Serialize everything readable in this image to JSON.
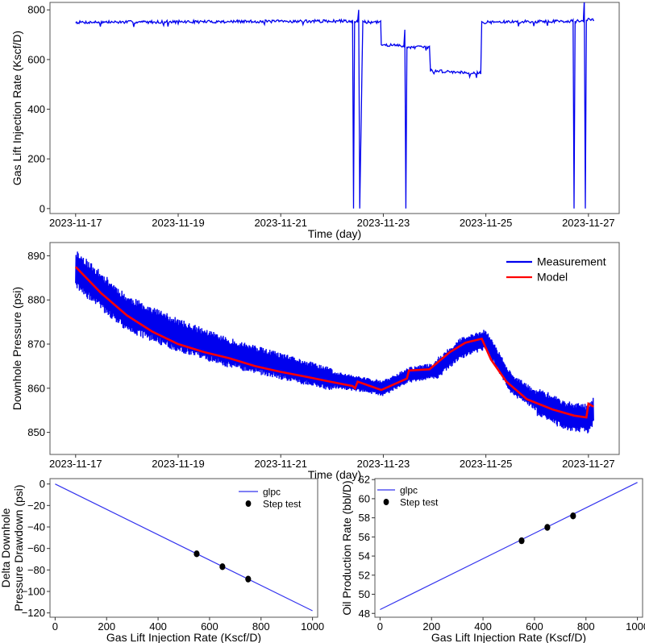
{
  "chart_data": [
    {
      "id": "gas",
      "type": "line",
      "xlabel": "Time (day)",
      "ylabel": "Gas Lift Injection Rate (Kscf/D)",
      "x_ticks": [
        "2023-11-17",
        "2023-11-19",
        "2023-11-21",
        "2023-11-23",
        "2023-11-25",
        "2023-11-27"
      ],
      "y_ticks": [
        0,
        200,
        400,
        600,
        800
      ],
      "xlim": [
        "2023-11-16.5",
        "2023-11-27.6"
      ],
      "ylim": [
        -20,
        830
      ],
      "grid": false,
      "series": [
        {
          "color": "#0000ee",
          "x": [
            "2023-11-17.0",
            "2023-11-22.4",
            "2023-11-22.42",
            "2023-11-22.44",
            "2023-11-22.5",
            "2023-11-22.52",
            "2023-11-22.54",
            "2023-11-22.6",
            "2023-11-22.62",
            "2023-11-22.64",
            "2023-11-22.95",
            "2023-11-22.96",
            "2023-11-23.4",
            "2023-11-23.42",
            "2023-11-23.44",
            "2023-11-23.46",
            "2023-11-23.48",
            "2023-11-23.9",
            "2023-11-23.92",
            "2023-11-24.9",
            "2023-11-24.92",
            "2023-11-26.7",
            "2023-11-26.72",
            "2023-11-26.74",
            "2023-11-26.9",
            "2023-11-26.92",
            "2023-11-26.94",
            "2023-11-26.96",
            "2023-11-27.1"
          ],
          "y": [
            750,
            755,
            0,
            755,
            755,
            800,
            0,
            755,
            752,
            750,
            750,
            660,
            655,
            720,
            0,
            650,
            650,
            650,
            555,
            545,
            750,
            755,
            0,
            755,
            755,
            840,
            0,
            760,
            760
          ]
        }
      ]
    },
    {
      "id": "pressure",
      "type": "line",
      "xlabel": "Time (day)",
      "ylabel": "Downhole Pressure (psi)",
      "x_ticks": [
        "2023-11-17",
        "2023-11-19",
        "2023-11-21",
        "2023-11-23",
        "2023-11-25",
        "2023-11-27"
      ],
      "y_ticks": [
        850,
        860,
        870,
        880,
        890
      ],
      "xlim": [
        "2023-11-16.5",
        "2023-11-27.6"
      ],
      "ylim": [
        845,
        893
      ],
      "grid": false,
      "legend": "top-right",
      "series": [
        {
          "name": "Measurement",
          "color": "#0000ee",
          "x": [
            "2023-11-17.0",
            "2023-11-18.0",
            "2023-11-19.0",
            "2023-11-20.0",
            "2023-11-21.0",
            "2023-11-22.0",
            "2023-11-22.5",
            "2023-11-23.0",
            "2023-11-23.5",
            "2023-11-24.0",
            "2023-11-24.5",
            "2023-11-25.0",
            "2023-11-25.5",
            "2023-11-26.0",
            "2023-11-26.5",
            "2023-11-27.0",
            "2023-11-27.1"
          ],
          "y": [
            887,
            877,
            872,
            868,
            865,
            862,
            861,
            860,
            863,
            864,
            869,
            871,
            861,
            857,
            854,
            853,
            855
          ]
        },
        {
          "name": "Model",
          "color": "#ff0000",
          "x": [
            "2023-11-17.0",
            "2023-11-17.5",
            "2023-11-18.0",
            "2023-11-18.5",
            "2023-11-19.0",
            "2023-11-19.5",
            "2023-11-20.0",
            "2023-11-20.5",
            "2023-11-21.0",
            "2023-11-21.5",
            "2023-11-22.0",
            "2023-11-22.4",
            "2023-11-22.45",
            "2023-11-22.5",
            "2023-11-22.96",
            "2023-11-23.46",
            "2023-11-23.5",
            "2023-11-23.9",
            "2023-11-24.3",
            "2023-11-24.6",
            "2023-11-24.92",
            "2023-11-25.1",
            "2023-11-25.4",
            "2023-11-25.8",
            "2023-11-26.3",
            "2023-11-26.72",
            "2023-11-26.96",
            "2023-11-27.0",
            "2023-11-27.1"
          ],
          "y": [
            887.5,
            881.5,
            876.5,
            872.8,
            870.0,
            868.2,
            866.8,
            865.0,
            863.7,
            862.6,
            861.4,
            860.5,
            860.0,
            861.5,
            859.6,
            862.2,
            864.0,
            864.3,
            868.2,
            870.3,
            871.2,
            866.5,
            861.5,
            857.5,
            855.2,
            853.8,
            853.4,
            856.5,
            855.8
          ]
        }
      ]
    },
    {
      "id": "delta",
      "type": "line",
      "xlabel": "Gas Lift Injection Rate (Kscf/D)",
      "ylabel": "Delta Downhole Pressure Drawdown (psi)",
      "x_ticks": [
        0,
        200,
        400,
        600,
        800,
        1000
      ],
      "y_ticks": [
        0,
        -20,
        -40,
        -60,
        -80,
        -100,
        -120
      ],
      "xlim": [
        -20,
        1020
      ],
      "ylim": [
        -124,
        5
      ],
      "grid": false,
      "legend": "top-right",
      "series": [
        {
          "name": "glpc",
          "color": "#3333ee",
          "style": "line",
          "x": [
            0,
            1000
          ],
          "y": [
            0,
            -118
          ]
        },
        {
          "name": "Step test",
          "color": "#000000",
          "style": "markers",
          "x": [
            550,
            650,
            750
          ],
          "y": [
            -65,
            -77,
            -88.5
          ]
        }
      ]
    },
    {
      "id": "oil",
      "type": "line",
      "xlabel": "Gas Lift Injection Rate (Kscf/D)",
      "ylabel": "Oil Production Rate (bbl/D)",
      "x_ticks": [
        0,
        200,
        400,
        600,
        800,
        1000
      ],
      "y_ticks": [
        48,
        50,
        52,
        54,
        56,
        58,
        60,
        62
      ],
      "xlim": [
        -20,
        1020
      ],
      "ylim": [
        47.6,
        62.1
      ],
      "grid": false,
      "legend": "top-left",
      "series": [
        {
          "name": "glpc",
          "color": "#3333ee",
          "style": "line",
          "x": [
            0,
            1000
          ],
          "y": [
            48.4,
            61.7
          ]
        },
        {
          "name": "Step test",
          "color": "#000000",
          "style": "markers",
          "x": [
            550,
            650,
            750
          ],
          "y": [
            55.6,
            57.0,
            58.2
          ]
        }
      ]
    }
  ]
}
